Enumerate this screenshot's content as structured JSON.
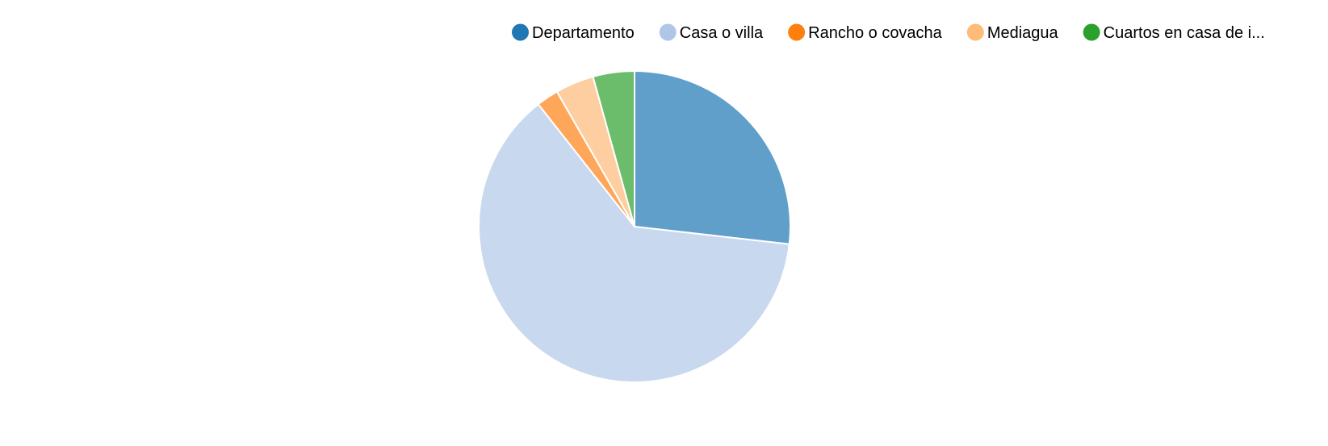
{
  "chart_data": {
    "type": "pie",
    "title": "",
    "legend_position": "top",
    "slices": [
      {
        "label": "Departamento",
        "value": 26.8,
        "color": "#1f77b4",
        "slice_color": "#619fcb"
      },
      {
        "label": "Casa o villa",
        "value": 62.6,
        "color": "#aec7e8",
        "slice_color": "#c8d8ef"
      },
      {
        "label": "Rancho o covacha",
        "value": 2.3,
        "color": "#ff7f0e",
        "slice_color": "#fea65a"
      },
      {
        "label": "Mediagua",
        "value": 4.0,
        "color": "#ffbb78",
        "slice_color": "#fecea0"
      },
      {
        "label": "Cuartos en casa de i...",
        "value": 4.3,
        "color": "#2ca02c",
        "slice_color": "#6bbd6b"
      }
    ]
  }
}
